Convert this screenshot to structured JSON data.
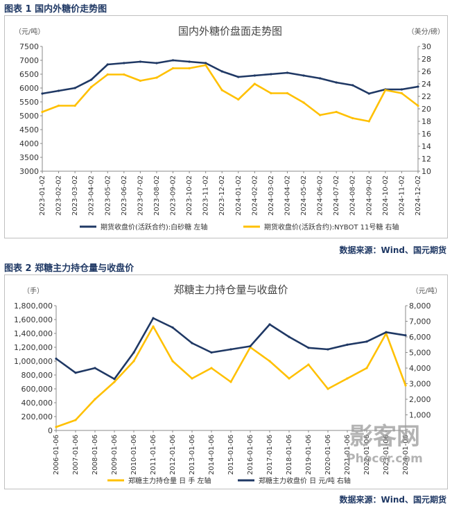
{
  "figure1": {
    "caption": "图表 1 国内外糖价走势图",
    "source": "数据来源：Wind、国元期货"
  },
  "figure2": {
    "caption": "图表 2 郑糖主力持仓量与收盘价",
    "source": "数据来源：Wind、国元期货"
  },
  "watermark": {
    "main": "影客网",
    "sub": "Phocer.com"
  },
  "colors": {
    "navy": "#1f3864",
    "gold": "#ffc000",
    "caption": "#1f3864"
  },
  "chart_data": [
    {
      "type": "line",
      "title": "国内外糖价盘面走势图",
      "y_left_unit": "（元/吨）",
      "y_right_unit": "（美分/磅）",
      "ylim_left": [
        3000,
        7500
      ],
      "ylim_right": [
        10,
        30
      ],
      "yticks_left": [
        "3000",
        "3500",
        "4000",
        "4500",
        "5000",
        "5500",
        "6000",
        "6500",
        "7000",
        "7500"
      ],
      "yticks_right": [
        "10",
        "12",
        "14",
        "16",
        "18",
        "20",
        "22",
        "24",
        "26",
        "28",
        "30"
      ],
      "x": [
        "2023-01-02",
        "2023-02-02",
        "2023-03-02",
        "2023-04-02",
        "2023-05-02",
        "2023-06-02",
        "2023-07-02",
        "2023-08-02",
        "2023-09-02",
        "2023-10-02",
        "2023-11-02",
        "2023-12-02",
        "2024-01-02",
        "2024-02-02",
        "2024-03-02",
        "2024-04-02",
        "2024-05-02",
        "2024-06-02",
        "2024-07-02",
        "2024-08-02",
        "2024-09-02",
        "2024-10-02",
        "2024-11-02",
        "2024-12-02"
      ],
      "grid": false,
      "legend_position": "bottom",
      "series": [
        {
          "name": "期货收盘价(活跃合约):白砂糖  左轴",
          "axis": "left",
          "color": "#1f3864",
          "values": [
            5800,
            5900,
            6000,
            6300,
            6850,
            6900,
            6950,
            6900,
            7000,
            6950,
            6900,
            6600,
            6400,
            6450,
            6500,
            6550,
            6450,
            6350,
            6200,
            6100,
            5800,
            5950,
            5950,
            6050
          ]
        },
        {
          "name": "期货收盘价(活跃合约):NYBOT 11号糖  右轴",
          "axis": "right",
          "color": "#ffc000",
          "values": [
            19.5,
            20.5,
            20.5,
            23.5,
            25.5,
            25.5,
            24.5,
            25,
            26.5,
            26.5,
            27,
            23,
            21.5,
            24,
            22.5,
            22.5,
            21,
            19,
            19.5,
            18.5,
            18,
            23,
            22.5,
            20.5
          ]
        }
      ]
    },
    {
      "type": "line",
      "title": "郑糖主力持仓量与收盘价",
      "y_left_unit": "（手）",
      "y_right_unit": "（元/吨）",
      "ylim_left": [
        0,
        1800000
      ],
      "ylim_right": [
        0,
        8000
      ],
      "yticks_left": [
        "0",
        "200,000",
        "400,000",
        "600,000",
        "800,000",
        "1,000,000",
        "1,200,000",
        "1,400,000",
        "1,600,000",
        "1,800,000"
      ],
      "yticks_right": [
        "1,000",
        "2,000",
        "3,000",
        "4,000",
        "5,000",
        "6,000",
        "7,000",
        "8,000"
      ],
      "x": [
        "2006-01-06",
        "2007-01-06",
        "2008-01-06",
        "2009-01-06",
        "2010-01-06",
        "2011-01-06",
        "2012-01-06",
        "2013-01-06",
        "2014-01-06",
        "2015-01-06",
        "2016-01-06",
        "2017-01-06",
        "2018-01-06",
        "2019-01-06",
        "2020-01-06",
        "2021-01-06",
        "2022-01-06",
        "2023-01-06",
        "2024-01-06"
      ],
      "grid": false,
      "legend_position": "bottom",
      "series": [
        {
          "name": "郑糖主力持仓量  日  手  左轴",
          "axis": "left",
          "color": "#ffc000",
          "values": [
            50000,
            150000,
            450000,
            700000,
            1000000,
            1500000,
            1000000,
            750000,
            900000,
            700000,
            1200000,
            1000000,
            750000,
            950000,
            600000,
            750000,
            900000,
            1400000,
            650000
          ]
        },
        {
          "name": "郑糖主力收盘价  日  元/吨  右轴",
          "axis": "right",
          "color": "#1f3864",
          "values": [
            4600,
            3700,
            4000,
            3300,
            5000,
            7200,
            6600,
            5600,
            5000,
            5200,
            5400,
            6800,
            6000,
            5300,
            5200,
            5500,
            5700,
            6300,
            6100
          ]
        }
      ]
    }
  ]
}
